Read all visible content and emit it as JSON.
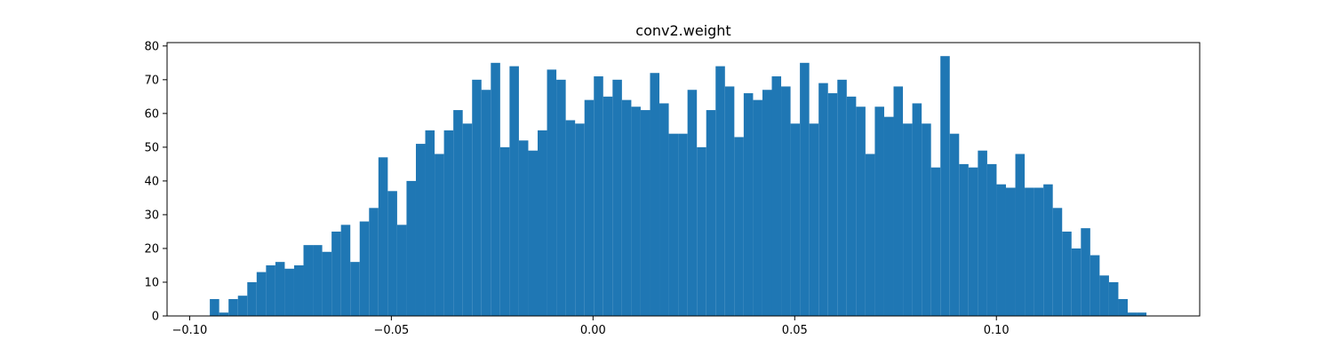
{
  "chart_data": {
    "type": "histogram",
    "title": "conv2.weight",
    "xlabel": "",
    "ylabel": "",
    "xlim": [
      -0.1056,
      0.1504
    ],
    "ylim": [
      0,
      81
    ],
    "x_ticks": [
      -0.1,
      -0.05,
      0.0,
      0.05,
      0.1
    ],
    "x_tick_labels": [
      "−0.10",
      "−0.05",
      "0.00",
      "0.05",
      "0.10"
    ],
    "y_ticks": [
      0,
      10,
      20,
      30,
      40,
      50,
      60,
      70,
      80
    ],
    "y_tick_labels": [
      "0",
      "10",
      "20",
      "30",
      "40",
      "50",
      "60",
      "70",
      "80"
    ],
    "bin_start": -0.095,
    "bin_end": 0.1372,
    "bar_color": "#1f77b4",
    "grid": false,
    "values": [
      5,
      1,
      5,
      6,
      10,
      13,
      15,
      16,
      14,
      15,
      21,
      21,
      19,
      25,
      27,
      16,
      28,
      32,
      47,
      37,
      27,
      40,
      51,
      55,
      48,
      55,
      61,
      57,
      70,
      67,
      75,
      50,
      74,
      52,
      49,
      55,
      73,
      70,
      58,
      57,
      64,
      71,
      65,
      70,
      64,
      62,
      61,
      72,
      63,
      54,
      54,
      67,
      50,
      61,
      74,
      68,
      53,
      66,
      64,
      67,
      71,
      68,
      57,
      75,
      57,
      69,
      66,
      70,
      65,
      62,
      48,
      62,
      59,
      68,
      57,
      63,
      57,
      44,
      77,
      54,
      45,
      44,
      49,
      45,
      39,
      38,
      48,
      38,
      38,
      39,
      32,
      25,
      20,
      26,
      18,
      12,
      10,
      5,
      1,
      1
    ]
  }
}
